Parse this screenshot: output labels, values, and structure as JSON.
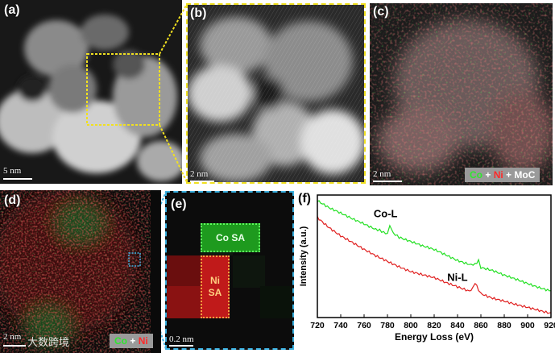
{
  "panels": {
    "a": {
      "label": "(a)",
      "scale": "5 nm"
    },
    "b": {
      "label": "(b)",
      "scale": "2 nm"
    },
    "c": {
      "label": "(c)",
      "scale": "2 nm",
      "legend": {
        "co": "Co",
        "plus1": "+",
        "ni": "Ni",
        "plus2": "+",
        "moc": "MoC"
      }
    },
    "d": {
      "label": "(d)",
      "legend": {
        "co": "Co",
        "plus": "+",
        "ni": "Ni"
      },
      "watermark": "大数跨境",
      "scale_partial": "2 nm"
    },
    "e": {
      "label": "(e)",
      "scale": "0.2 nm",
      "co_sa": "Co SA",
      "ni_sa_line1": "Ni",
      "ni_sa_line2": "SA"
    },
    "f": {
      "label": "(f)"
    }
  },
  "colors": {
    "co": "#22e022",
    "ni": "#e02020",
    "zoom_yellow": "#f0e020",
    "zoom_cyan": "#3ab0e0"
  },
  "chart_data": {
    "type": "line",
    "xlabel": "Energy Loss (eV)",
    "ylabel": "Intensity (a.u.)",
    "xlim": [
      720,
      920
    ],
    "x_ticks": [
      720,
      740,
      760,
      780,
      800,
      820,
      840,
      860,
      880,
      900,
      920
    ],
    "ylim": [
      0,
      100
    ],
    "annotations": [
      {
        "text": "Co-L",
        "x": 782,
        "y": 82
      },
      {
        "text": "Ni-L",
        "x": 845,
        "y": 30
      }
    ],
    "series": [
      {
        "color": "#22e022",
        "x": [
          720,
          730,
          740,
          750,
          760,
          770,
          775,
          780,
          782,
          785,
          790,
          800,
          810,
          820,
          830,
          840,
          850,
          855,
          858,
          860,
          870,
          880,
          890,
          900,
          910,
          920
        ],
        "y": [
          96,
          90,
          85,
          80,
          76,
          72,
          70,
          69,
          75,
          68,
          66,
          62,
          58,
          55,
          51,
          47,
          44,
          43,
          46,
          41,
          38,
          34,
          31,
          28,
          25,
          22
        ]
      },
      {
        "color": "#e02020",
        "x": [
          720,
          730,
          740,
          750,
          760,
          770,
          780,
          790,
          800,
          810,
          820,
          830,
          840,
          850,
          853,
          855,
          858,
          860,
          870,
          880,
          890,
          900,
          910,
          920
        ],
        "y": [
          82,
          74,
          67,
          61,
          55,
          50,
          46,
          42,
          38,
          35,
          32,
          28,
          25,
          22,
          24,
          28,
          22,
          20,
          16,
          13,
          10,
          8,
          6,
          4
        ]
      }
    ]
  }
}
